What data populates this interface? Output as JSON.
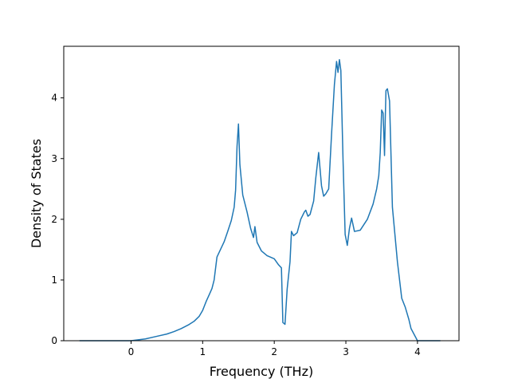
{
  "chart_data": {
    "type": "line",
    "title": "",
    "xlabel": "Frequency (THz)",
    "ylabel": "Density of States",
    "xlim": [
      -0.94,
      4.58
    ],
    "ylim": [
      0,
      4.85
    ],
    "xticks": [
      0,
      1,
      2,
      3,
      4
    ],
    "yticks": [
      0,
      1,
      2,
      3,
      4
    ],
    "grid": false,
    "legend": "none",
    "series": [
      {
        "color": "#1f77b4",
        "x": [
          -0.72,
          -0.2,
          0.0,
          0.2,
          0.35,
          0.5,
          0.6,
          0.7,
          0.8,
          0.88,
          0.95,
          1.0,
          1.05,
          1.1,
          1.13,
          1.16,
          1.2,
          1.3,
          1.35,
          1.4,
          1.44,
          1.46,
          1.48,
          1.5,
          1.52,
          1.56,
          1.62,
          1.67,
          1.71,
          1.73,
          1.76,
          1.82,
          1.9,
          2.0,
          2.06,
          2.1,
          2.12,
          2.15,
          2.18,
          2.22,
          2.24,
          2.27,
          2.32,
          2.37,
          2.42,
          2.44,
          2.47,
          2.5,
          2.55,
          2.58,
          2.62,
          2.66,
          2.69,
          2.72,
          2.76,
          2.8,
          2.84,
          2.87,
          2.89,
          2.91,
          2.93,
          2.96,
          2.99,
          3.02,
          3.05,
          3.08,
          3.12,
          3.2,
          3.3,
          3.38,
          3.43,
          3.46,
          3.48,
          3.5,
          3.52,
          3.54,
          3.55,
          3.56,
          3.58,
          3.61,
          3.65,
          3.72,
          3.78,
          3.83,
          3.88,
          3.91,
          4.0,
          4.1,
          4.32
        ],
        "y": [
          0.0,
          0.0,
          0.0,
          0.03,
          0.07,
          0.11,
          0.15,
          0.2,
          0.26,
          0.32,
          0.4,
          0.5,
          0.65,
          0.78,
          0.86,
          1.0,
          1.38,
          1.63,
          1.8,
          1.98,
          2.2,
          2.48,
          3.2,
          3.57,
          2.9,
          2.4,
          2.12,
          1.85,
          1.7,
          1.88,
          1.62,
          1.48,
          1.4,
          1.35,
          1.25,
          1.2,
          0.3,
          0.27,
          0.85,
          1.3,
          1.8,
          1.73,
          1.78,
          2.0,
          2.12,
          2.15,
          2.05,
          2.08,
          2.3,
          2.68,
          3.1,
          2.55,
          2.38,
          2.42,
          2.5,
          3.4,
          4.22,
          4.6,
          4.42,
          4.63,
          4.45,
          3.0,
          1.75,
          1.57,
          1.85,
          2.02,
          1.8,
          1.82,
          2.0,
          2.25,
          2.5,
          2.72,
          3.1,
          3.8,
          3.75,
          3.05,
          3.65,
          4.12,
          4.15,
          3.95,
          2.2,
          1.3,
          0.7,
          0.55,
          0.35,
          0.2,
          0.0,
          0.0,
          0.0
        ]
      }
    ]
  }
}
